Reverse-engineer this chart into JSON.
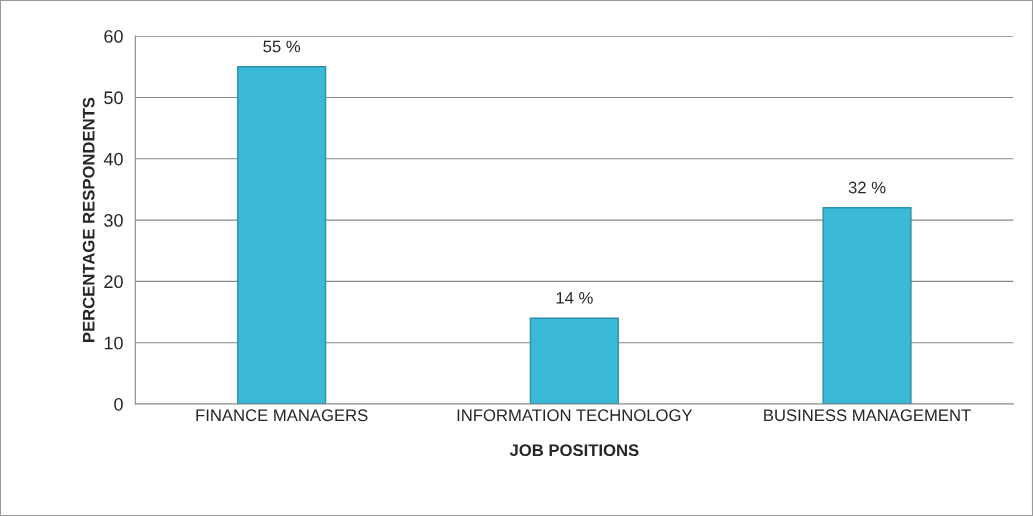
{
  "chart_data": {
    "type": "bar",
    "xlabel": "JOB POSITIONS",
    "ylabel": "PERCENTAGE RESPONDENTS",
    "categories": [
      "FINANCE MANAGERS",
      "INFORMATION TECHNOLOGY",
      "BUSINESS MANAGEMENT"
    ],
    "values": [
      55,
      14,
      32
    ],
    "value_labels": [
      "55 %",
      "14 %",
      "32 %"
    ],
    "color": "#3bbad8",
    "ylim": [
      0,
      60
    ],
    "yticks": [
      0,
      10,
      20,
      30,
      40,
      50,
      60
    ],
    "grid": "y",
    "legend": false
  }
}
